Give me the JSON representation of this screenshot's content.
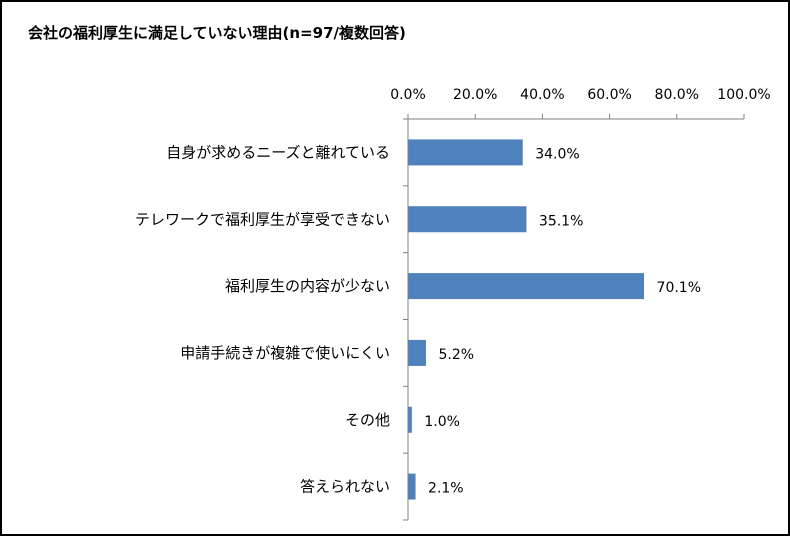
{
  "chart_data": {
    "type": "bar",
    "orientation": "horizontal",
    "title": "会社の福利厚生に満足していない理由(n=97/複数回答)",
    "categories": [
      "自身が求めるニーズと離れている",
      "テレワークで福利厚生が享受できない",
      "福利厚生の内容が少ない",
      "申請手続きが複雑で使いにくい",
      "その他",
      "答えられない"
    ],
    "values": [
      34.0,
      35.1,
      70.1,
      5.2,
      1.0,
      2.1
    ],
    "data_labels": [
      "34.0%",
      "35.1%",
      "70.1%",
      "5.2%",
      "1.0%",
      "2.1%"
    ],
    "xlim": [
      0,
      100
    ],
    "x_ticks": [
      0,
      20,
      40,
      60,
      80,
      100
    ],
    "x_tick_labels": [
      "0.0%",
      "20.0%",
      "40.0%",
      "60.0%",
      "80.0%",
      "100.0%"
    ],
    "axis_position": "top",
    "grid": false,
    "legend": "none",
    "bar_color": "#4f81bd",
    "axis_color": "#808080"
  }
}
